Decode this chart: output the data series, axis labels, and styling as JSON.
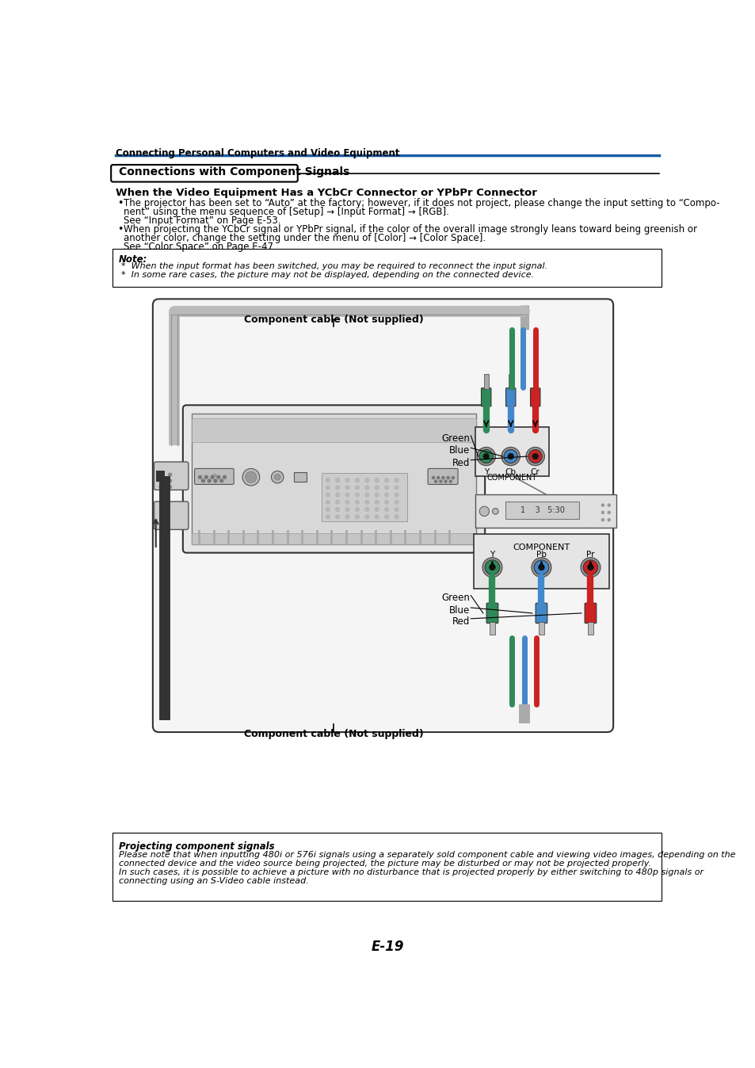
{
  "page_title": "Connecting Personal Computers and Video Equipment",
  "section_title": "Connections with Component Signals",
  "subtitle": "When the Video Equipment Has a YCbCr Connector or YPbPr Connector",
  "bullet1_line1": "The projector has been set to “Auto” at the factory; however, if it does not project, please change the input setting to “Compo-",
  "bullet1_line2": "nent” using the menu sequence of [Setup] → [Input Format] → [RGB].",
  "bullet1_line3": "See “Input Format” on Page E-53.",
  "bullet2_line1": "When projecting the YCbCr signal or YPbPr signal, if the color of the overall image strongly leans toward being greenish or",
  "bullet2_line2": "another color, change the setting under the menu of [Color] → [Color Space].",
  "bullet2_line3": "See “Color Space” on Page E-47.",
  "note_title": "Note:",
  "note_line1": "*  When the input format has been switched, you may be required to reconnect the input signal.",
  "note_line2": "*  In some rare cases, the picture may not be displayed, depending on the connected device.",
  "cable_label_top": "Component cable (Not supplied)",
  "cable_label_bottom": "Component cable (Not supplied)",
  "green_label": "Green",
  "blue_label": "Blue",
  "red_label": "Red",
  "top_comp_labels": [
    "Y",
    "Cb",
    "Cr"
  ],
  "top_comp_title": "COMPONENT",
  "bottom_comp_labels": [
    "Y",
    "Pb",
    "Pr"
  ],
  "bottom_comp_title": "COMPONENT",
  "timing_text": "1    3   5:30",
  "bottom_box_title": "Projecting component signals",
  "bottom_box_line1": "Please note that when inputting 480i or 576i signals using a separately sold component cable and viewing video images, depending on the",
  "bottom_box_line2": "connected device and the video source being projected, the picture may be disturbed or may not be projected properly.",
  "bottom_box_line3": "In such cases, it is possible to achieve a picture with no disturbance that is projected properly by either switching to 480p signals or",
  "bottom_box_line4": "connecting using an S-Video cable instead.",
  "page_number": "E-19",
  "blue_line_color": "#1b5ea6",
  "col_green": "#2e8b57",
  "col_blue": "#4488cc",
  "col_red": "#cc2222",
  "col_gray": "#aaaaaa",
  "col_dark": "#333333",
  "col_mid": "#888888",
  "col_light": "#dddddd",
  "col_bg": "#ffffff"
}
